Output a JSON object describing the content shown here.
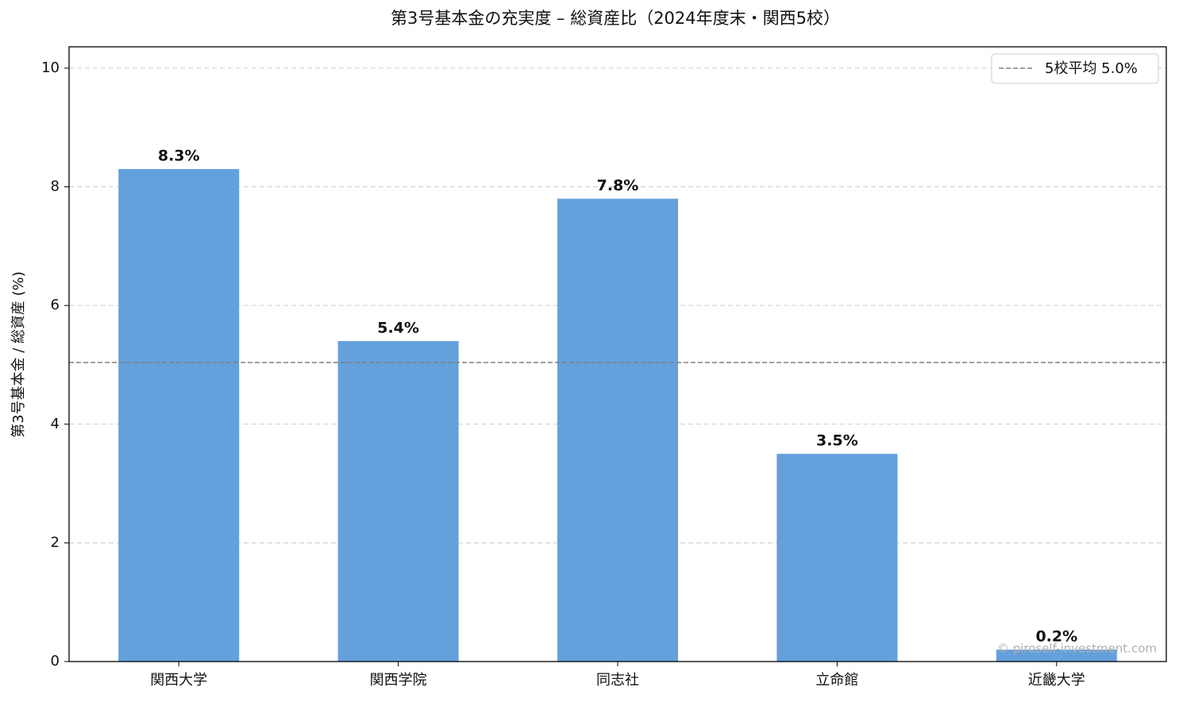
{
  "chart_data": {
    "type": "bar",
    "title": "第3号基本金の充実度 – 総資産比（2024年度末・関西5校）",
    "ylabel": "第3号基本金 / 総資産 (%)",
    "categories": [
      "関西大学",
      "関西学院",
      "同志社",
      "立命館",
      "近畿大学"
    ],
    "values": [
      8.3,
      5.4,
      7.8,
      3.5,
      0.2
    ],
    "value_labels": [
      "8.3%",
      "5.4%",
      "7.8%",
      "3.5%",
      "0.2%"
    ],
    "color": "#64a0dc",
    "ylim": [
      0,
      10.36
    ],
    "yticks": [
      0,
      2,
      4,
      6,
      8,
      10
    ],
    "grid": true,
    "average_line": {
      "value": 5.04,
      "label": "5校平均 5.0%",
      "color": "#808080"
    },
    "legend": "upper right",
    "watermark": "© piroself-investment.com"
  }
}
